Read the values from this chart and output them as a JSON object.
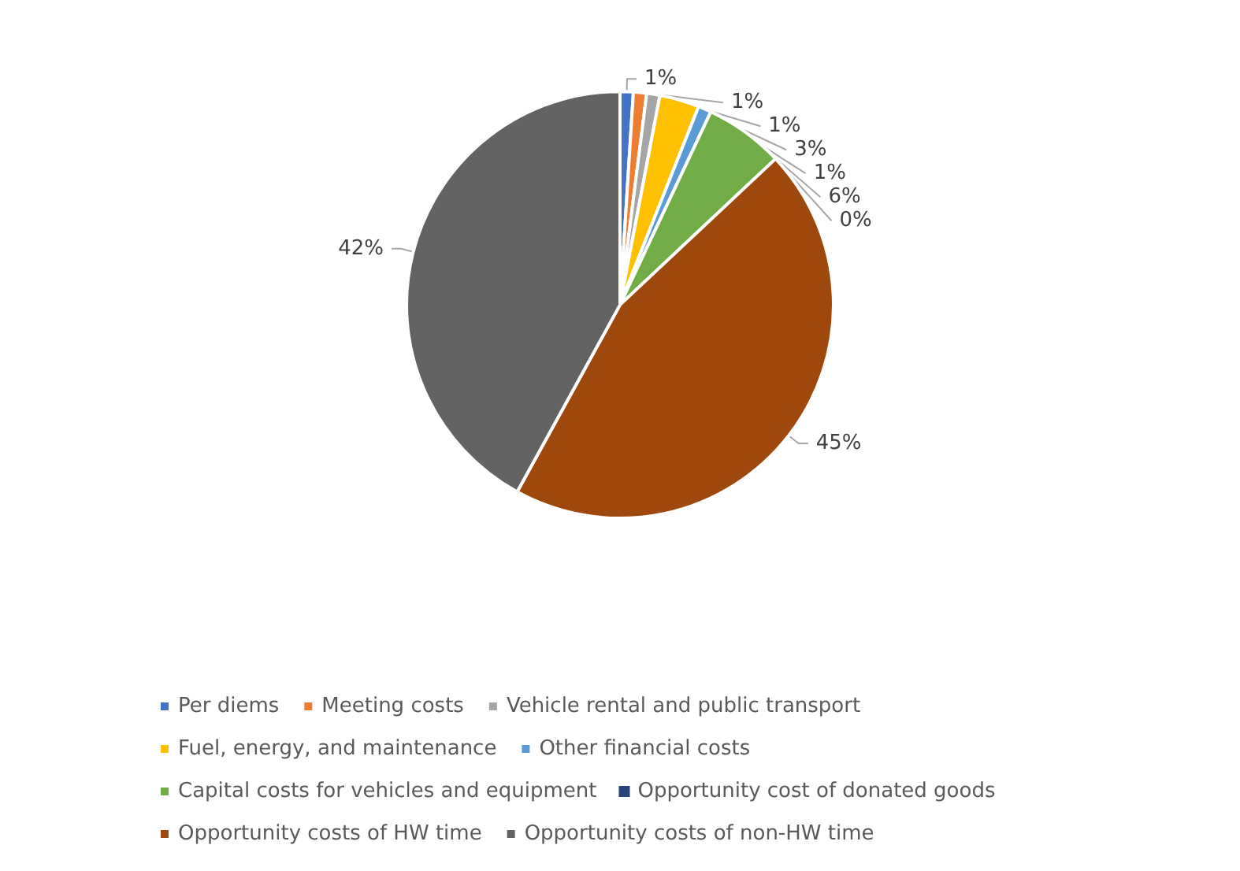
{
  "chart_data": {
    "type": "pie",
    "categories": [
      "Per diems",
      "Meeting costs",
      "Vehicle rental and public transport",
      "Fuel, energy, and maintenance",
      "Other financial costs",
      "Capital costs for vehicles and equipment",
      "Opportunity cost of donated goods",
      "Opportunity costs of HW time",
      "Opportunity costs of non-HW time"
    ],
    "values": [
      1,
      1,
      1,
      3,
      1,
      6,
      0,
      45,
      42
    ],
    "value_labels": [
      "1%",
      "1%",
      "1%",
      "3%",
      "1%",
      "6%",
      "0%",
      "45%",
      "42%"
    ],
    "colors": [
      "#4472c4",
      "#ed7d31",
      "#a5a5a5",
      "#ffc000",
      "#5b9bd5",
      "#70ad47",
      "#264478",
      "#9e480e",
      "#636363"
    ],
    "legend": "bottom"
  }
}
